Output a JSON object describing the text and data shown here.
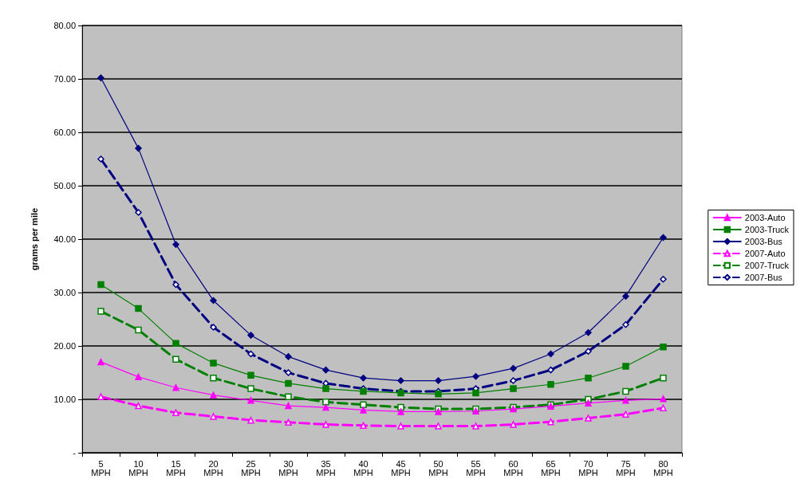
{
  "chart_data": {
    "type": "line",
    "ylabel": "grams per mile",
    "categories": [
      "5 MPH",
      "10 MPH",
      "15 MPH",
      "20 MPH",
      "25 MPH",
      "30 MPH",
      "35 MPH",
      "40 MPH",
      "45 MPH",
      "50 MPH",
      "55 MPH",
      "60 MPH",
      "65 MPH",
      "70 MPH",
      "75 MPH",
      "80 MPH"
    ],
    "ylim": [
      0,
      80
    ],
    "yticks": [
      {
        "value": 0,
        "label": "-"
      },
      {
        "value": 10,
        "label": "10.00"
      },
      {
        "value": 20,
        "label": "20.00"
      },
      {
        "value": 30,
        "label": "30.00"
      },
      {
        "value": 40,
        "label": "40.00"
      },
      {
        "value": 50,
        "label": "50.00"
      },
      {
        "value": 60,
        "label": "60.00"
      },
      {
        "value": 70,
        "label": "70.00"
      },
      {
        "value": 80,
        "label": "80.00"
      }
    ],
    "grid": "y",
    "legend": "right",
    "series": [
      {
        "name": "2003-Auto",
        "color": "#ff00ff",
        "marker": "triangle",
        "line_style": "solid",
        "values": [
          17,
          14.2,
          12.2,
          10.8,
          9.8,
          8.8,
          8.5,
          8,
          7.7,
          7.7,
          7.8,
          8.2,
          8.7,
          9.3,
          9.8,
          10.1
        ]
      },
      {
        "name": "2003-Truck",
        "color": "#008000",
        "marker": "square",
        "line_style": "solid",
        "values": [
          31.5,
          27,
          20.5,
          16.8,
          14.5,
          13,
          12,
          11.5,
          11.2,
          11,
          11.2,
          12,
          12.8,
          14,
          16.2,
          19.8
        ]
      },
      {
        "name": "2003-Bus",
        "color": "#000080",
        "marker": "diamond",
        "line_style": "solid",
        "values": [
          70.2,
          57,
          39,
          28.5,
          22,
          18,
          15.5,
          14,
          13.5,
          13.5,
          14.3,
          15.8,
          18.5,
          22.5,
          29.3,
          40.3
        ]
      },
      {
        "name": "2007-Auto",
        "color": "#ff00ff",
        "marker": "triangle",
        "line_style": "dashed",
        "values": [
          10.5,
          8.8,
          7.5,
          6.8,
          6.1,
          5.7,
          5.3,
          5.1,
          5,
          5,
          5,
          5.3,
          5.8,
          6.5,
          7.2,
          8.4
        ]
      },
      {
        "name": "2007-Truck",
        "color": "#008000",
        "marker": "square",
        "line_style": "dashed",
        "values": [
          26.5,
          23,
          17.5,
          14,
          12,
          10.5,
          9.5,
          9,
          8.5,
          8.2,
          8.2,
          8.5,
          9,
          10,
          11.5,
          14
        ]
      },
      {
        "name": "2007-Bus",
        "color": "#000080",
        "marker": "diamond",
        "line_style": "dashed",
        "values": [
          55,
          45,
          31.5,
          23.5,
          18.5,
          15,
          13,
          12,
          11.5,
          11.5,
          12,
          13.5,
          15.5,
          19,
          24,
          32.5
        ]
      }
    ]
  }
}
